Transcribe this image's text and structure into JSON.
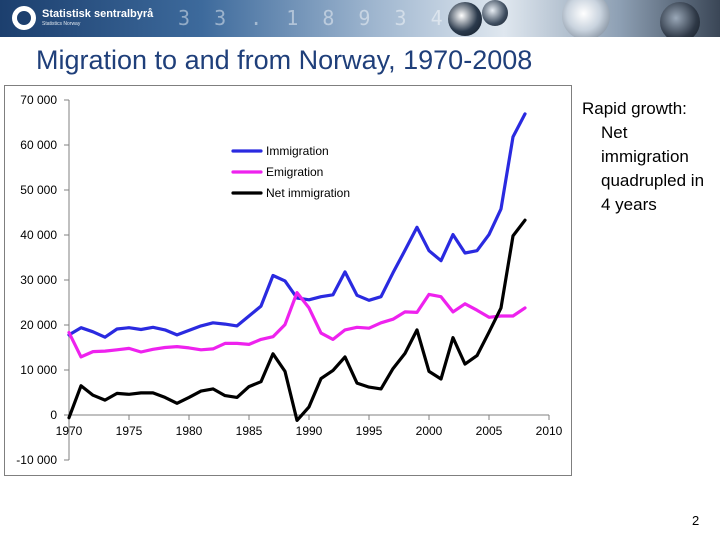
{
  "branding": {
    "logo_name": "Statistisk sentralbyrå",
    "logo_subtitle": "Statistics Norway",
    "banner_digits": "3 3 . 1 8 9 3 4"
  },
  "slide": {
    "title": "Migration to and from Norway, 1970-2008",
    "note_lead": "Rapid growth:",
    "note_rest": "Net immigration quadrupled in 4 years",
    "page_number": "2"
  },
  "colors": {
    "immigration": "#2a2ae0",
    "emigration": "#ee22ee",
    "net": "#000000",
    "title": "#1f3f7a"
  },
  "chart_data": {
    "type": "line",
    "title": "",
    "xlabel": "",
    "ylabel": "",
    "xlim": [
      1970,
      2010
    ],
    "ylim": [
      -10000,
      70000
    ],
    "x_ticks": [
      1970,
      1975,
      1980,
      1985,
      1990,
      1995,
      2000,
      2005,
      2010
    ],
    "x_tick_labels": [
      "1970",
      "1975",
      "1980",
      "1985",
      "1990",
      "1995",
      "2000",
      "2005",
      "2010"
    ],
    "y_ticks": [
      -10000,
      0,
      10000,
      20000,
      30000,
      40000,
      50000,
      60000,
      70000
    ],
    "y_tick_labels": [
      "-10 000",
      "0",
      "10 000",
      "20 000",
      "30 000",
      "40 000",
      "50 000",
      "60 000",
      "70 000"
    ],
    "legend_position": "top-left",
    "grid": false,
    "x": [
      1970,
      1971,
      1972,
      1973,
      1974,
      1975,
      1976,
      1977,
      1978,
      1979,
      1980,
      1981,
      1982,
      1983,
      1984,
      1985,
      1986,
      1987,
      1988,
      1989,
      1990,
      1991,
      1992,
      1993,
      1994,
      1995,
      1996,
      1997,
      1998,
      1999,
      2000,
      2001,
      2002,
      2003,
      2004,
      2005,
      2006,
      2007,
      2008
    ],
    "series": [
      {
        "name": "Immigration",
        "color_key": "immigration",
        "values": [
          17800,
          19400,
          18500,
          17300,
          19100,
          19400,
          19000,
          19500,
          18900,
          17800,
          18800,
          19800,
          20500,
          20200,
          19800,
          22000,
          24200,
          31000,
          29800,
          26000,
          25600,
          26300,
          26700,
          31800,
          26600,
          25500,
          26300,
          31600,
          36600,
          41700,
          36500,
          34300,
          40100,
          36000,
          36500,
          40100,
          45800,
          61800,
          66900
        ]
      },
      {
        "name": "Emigration",
        "color_key": "emigration",
        "values": [
          18300,
          12900,
          14100,
          14200,
          14500,
          14800,
          14000,
          14600,
          15000,
          15200,
          14900,
          14500,
          14700,
          15900,
          15900,
          15700,
          16800,
          17400,
          20100,
          27200,
          23800,
          18200,
          16800,
          18900,
          19500,
          19300,
          20500,
          21300,
          22900,
          22800,
          26800,
          26300,
          22900,
          24700,
          23300,
          21700,
          22000,
          22000,
          23800
        ]
      },
      {
        "name": "Net immigration",
        "color_key": "net",
        "values": [
          -600,
          6500,
          4400,
          3300,
          4800,
          4600,
          4900,
          4900,
          3900,
          2600,
          3900,
          5300,
          5800,
          4300,
          3900,
          6300,
          7400,
          13600,
          9700,
          -1200,
          1800,
          8100,
          9900,
          12900,
          7100,
          6200,
          5800,
          10300,
          13700,
          18900,
          9700,
          8000,
          17200,
          11300,
          13200,
          18400,
          23800,
          39800,
          43300
        ]
      }
    ]
  }
}
